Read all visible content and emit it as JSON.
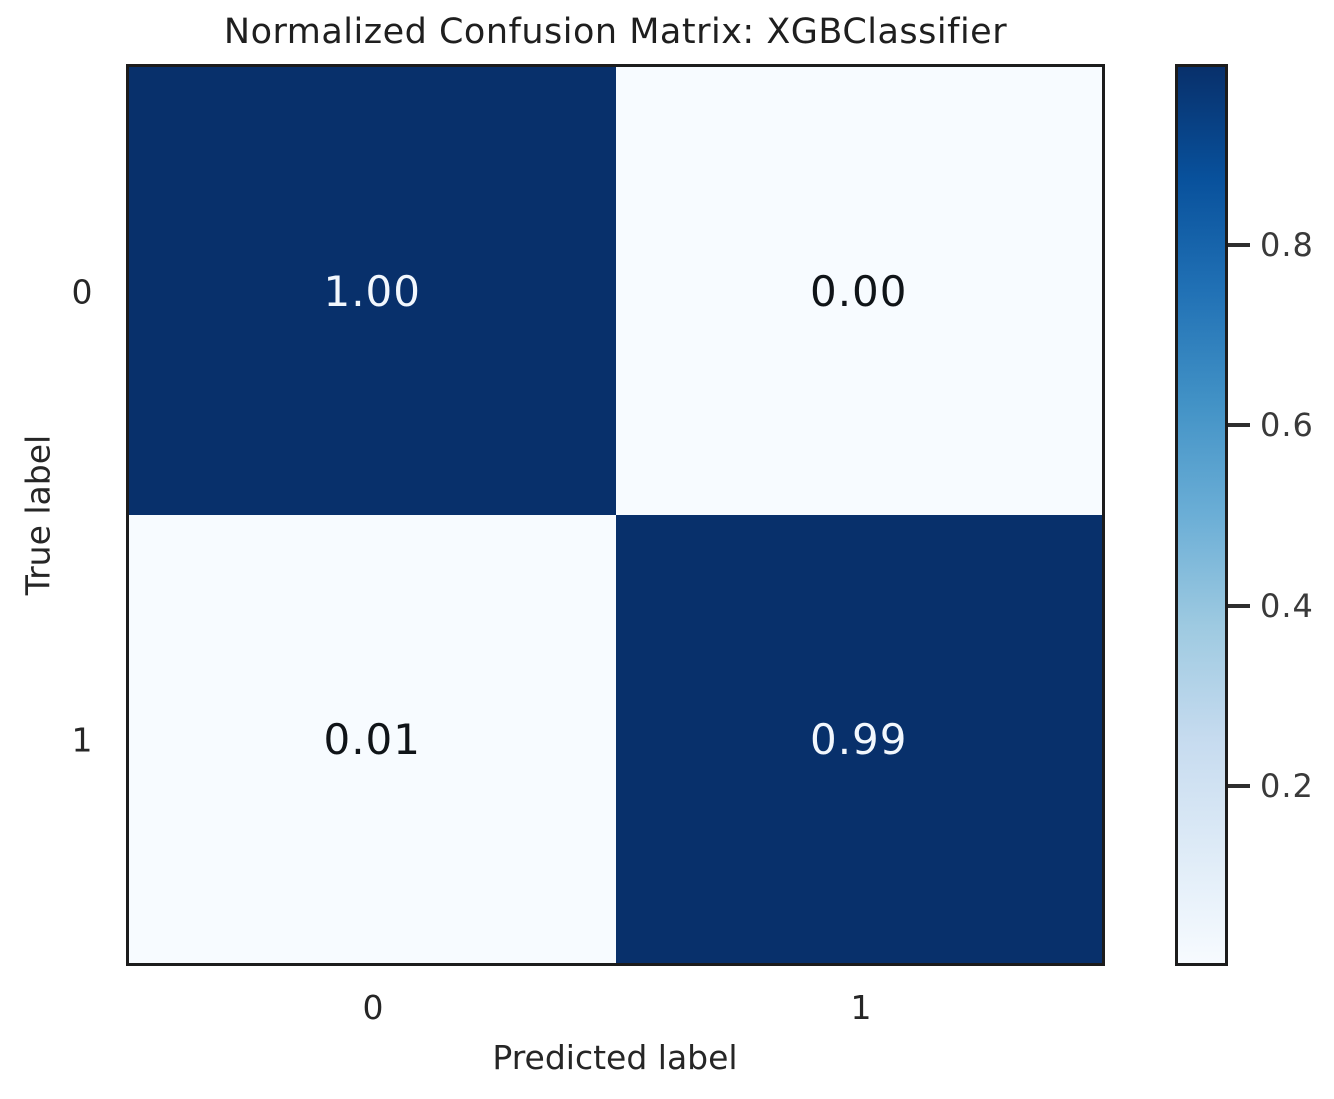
{
  "chart_data": {
    "type": "heatmap",
    "title": "Normalized Confusion Matrix: XGBClassifier",
    "xlabel": "Predicted label",
    "ylabel": "True label",
    "x_tick_labels": [
      "0",
      "1"
    ],
    "y_tick_labels": [
      "0",
      "1"
    ],
    "matrix": [
      [
        1.0,
        0.0
      ],
      [
        0.01,
        0.99
      ]
    ],
    "colormap": "Blues",
    "vmin": 0.0,
    "vmax": 1.0,
    "legend_position": "right-colorbar",
    "grid": false,
    "cells": [
      {
        "row": 0,
        "col": 0,
        "value": 1.0,
        "label": "1.00",
        "color": "#08306b",
        "text_color": "#f2f7fd"
      },
      {
        "row": 0,
        "col": 1,
        "value": 0.0,
        "label": "0.00",
        "color": "#f7fbff",
        "text_color": "#101418"
      },
      {
        "row": 1,
        "col": 0,
        "value": 0.01,
        "label": "0.01",
        "color": "#f7fbff",
        "text_color": "#101418"
      },
      {
        "row": 1,
        "col": 1,
        "value": 0.99,
        "label": "0.99",
        "color": "#08306b",
        "text_color": "#f2f7fd"
      }
    ],
    "colorbar": {
      "ticks": [
        {
          "value": 0.8,
          "label": "0.8"
        },
        {
          "value": 0.6,
          "label": "0.6"
        },
        {
          "value": 0.4,
          "label": "0.4"
        },
        {
          "value": 0.2,
          "label": "0.2"
        }
      ],
      "color_high": "#08306b",
      "color_low": "#f7fbff"
    },
    "colors": {
      "plot_border": "#1c1c1c",
      "title_text": "#1f1f1f",
      "tick_text": "#262626",
      "colorbar_tick_text": "#3a3a3a",
      "background": "#ffffff"
    }
  }
}
